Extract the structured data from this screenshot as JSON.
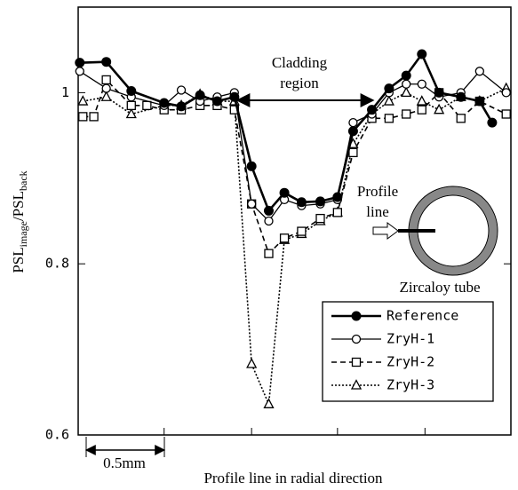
{
  "chart_data": {
    "type": "line",
    "ylabel": [
      "PSL",
      "image",
      "/PSL",
      "back"
    ],
    "xlabel": "Profile line in radial direction",
    "xlim": [
      0,
      2.77
    ],
    "xticks": [
      0.55,
      1.11,
      1.66,
      2.22
    ],
    "ylim": [
      0.6,
      1.1
    ],
    "yticks": [
      0.6,
      0.8,
      1
    ],
    "legend": "lower right",
    "annotations": {
      "cladding": [
        "Cladding",
        "region"
      ],
      "profile_line": [
        "Profile",
        "line"
      ],
      "tube": "Zircaloy tube",
      "scale": "0.5mm"
    },
    "series": [
      {
        "name": "Reference",
        "color": "#000000",
        "marker": "filled-circle",
        "line_style": "thick",
        "x": [
          0.01,
          0.18,
          0.34,
          0.55,
          0.66,
          0.78,
          0.89,
          1.0,
          1.11,
          1.22,
          1.32,
          1.43,
          1.55,
          1.66,
          1.76,
          1.88,
          1.99,
          2.1,
          2.2,
          2.31,
          2.45,
          2.57,
          2.65
        ],
        "values": [
          1.035,
          1.036,
          1.002,
          0.988,
          0.984,
          0.997,
          0.99,
          0.995,
          0.914,
          0.862,
          0.883,
          0.872,
          0.873,
          0.878,
          0.955,
          0.98,
          1.005,
          1.02,
          1.045,
          1.0,
          0.995,
          0.99,
          0.965
        ]
      },
      {
        "name": "ZryH-1",
        "color": "#000000",
        "marker": "open-circle",
        "line_style": "solid",
        "x": [
          0.01,
          0.18,
          0.34,
          0.55,
          0.66,
          0.78,
          0.89,
          1.0,
          1.11,
          1.22,
          1.32,
          1.43,
          1.55,
          1.66,
          1.76,
          1.88,
          1.99,
          2.1,
          2.2,
          2.31,
          2.45,
          2.57,
          2.74
        ],
        "values": [
          1.025,
          1.005,
          0.995,
          0.985,
          1.003,
          0.99,
          0.995,
          1.0,
          0.87,
          0.85,
          0.875,
          0.868,
          0.87,
          0.875,
          0.965,
          0.975,
          1.0,
          1.01,
          1.01,
          0.995,
          1.0,
          1.025,
          1.0
        ]
      },
      {
        "name": "ZryH-2",
        "color": "#000000",
        "marker": "open-square",
        "line_style": "dashed",
        "x": [
          0.03,
          0.1,
          0.18,
          0.34,
          0.44,
          0.55,
          0.66,
          0.78,
          0.89,
          1.0,
          1.11,
          1.22,
          1.32,
          1.43,
          1.55,
          1.66,
          1.76,
          1.88,
          1.99,
          2.1,
          2.2,
          2.31,
          2.45,
          2.57,
          2.74
        ],
        "values": [
          0.972,
          0.972,
          1.015,
          0.985,
          0.985,
          0.98,
          0.98,
          0.985,
          0.985,
          0.98,
          0.87,
          0.812,
          0.83,
          0.838,
          0.853,
          0.86,
          0.93,
          0.97,
          0.97,
          0.975,
          0.98,
          1.0,
          0.97,
          0.99,
          0.975
        ]
      },
      {
        "name": "ZryH-3",
        "color": "#000000",
        "marker": "open-triangle",
        "line_style": "dotted",
        "x": [
          0.03,
          0.18,
          0.34,
          0.55,
          0.66,
          0.78,
          0.89,
          1.0,
          1.11,
          1.22,
          1.32,
          1.43,
          1.55,
          1.66,
          1.76,
          1.88,
          1.99,
          2.1,
          2.2,
          2.31,
          2.45,
          2.57,
          2.74
        ],
        "values": [
          0.99,
          0.995,
          0.975,
          0.985,
          0.985,
          0.998,
          0.99,
          0.99,
          0.683,
          0.636,
          0.828,
          0.835,
          0.85,
          0.86,
          0.94,
          0.975,
          0.99,
          1.0,
          0.99,
          0.98,
          0.995,
          0.99,
          1.005
        ]
      }
    ]
  }
}
